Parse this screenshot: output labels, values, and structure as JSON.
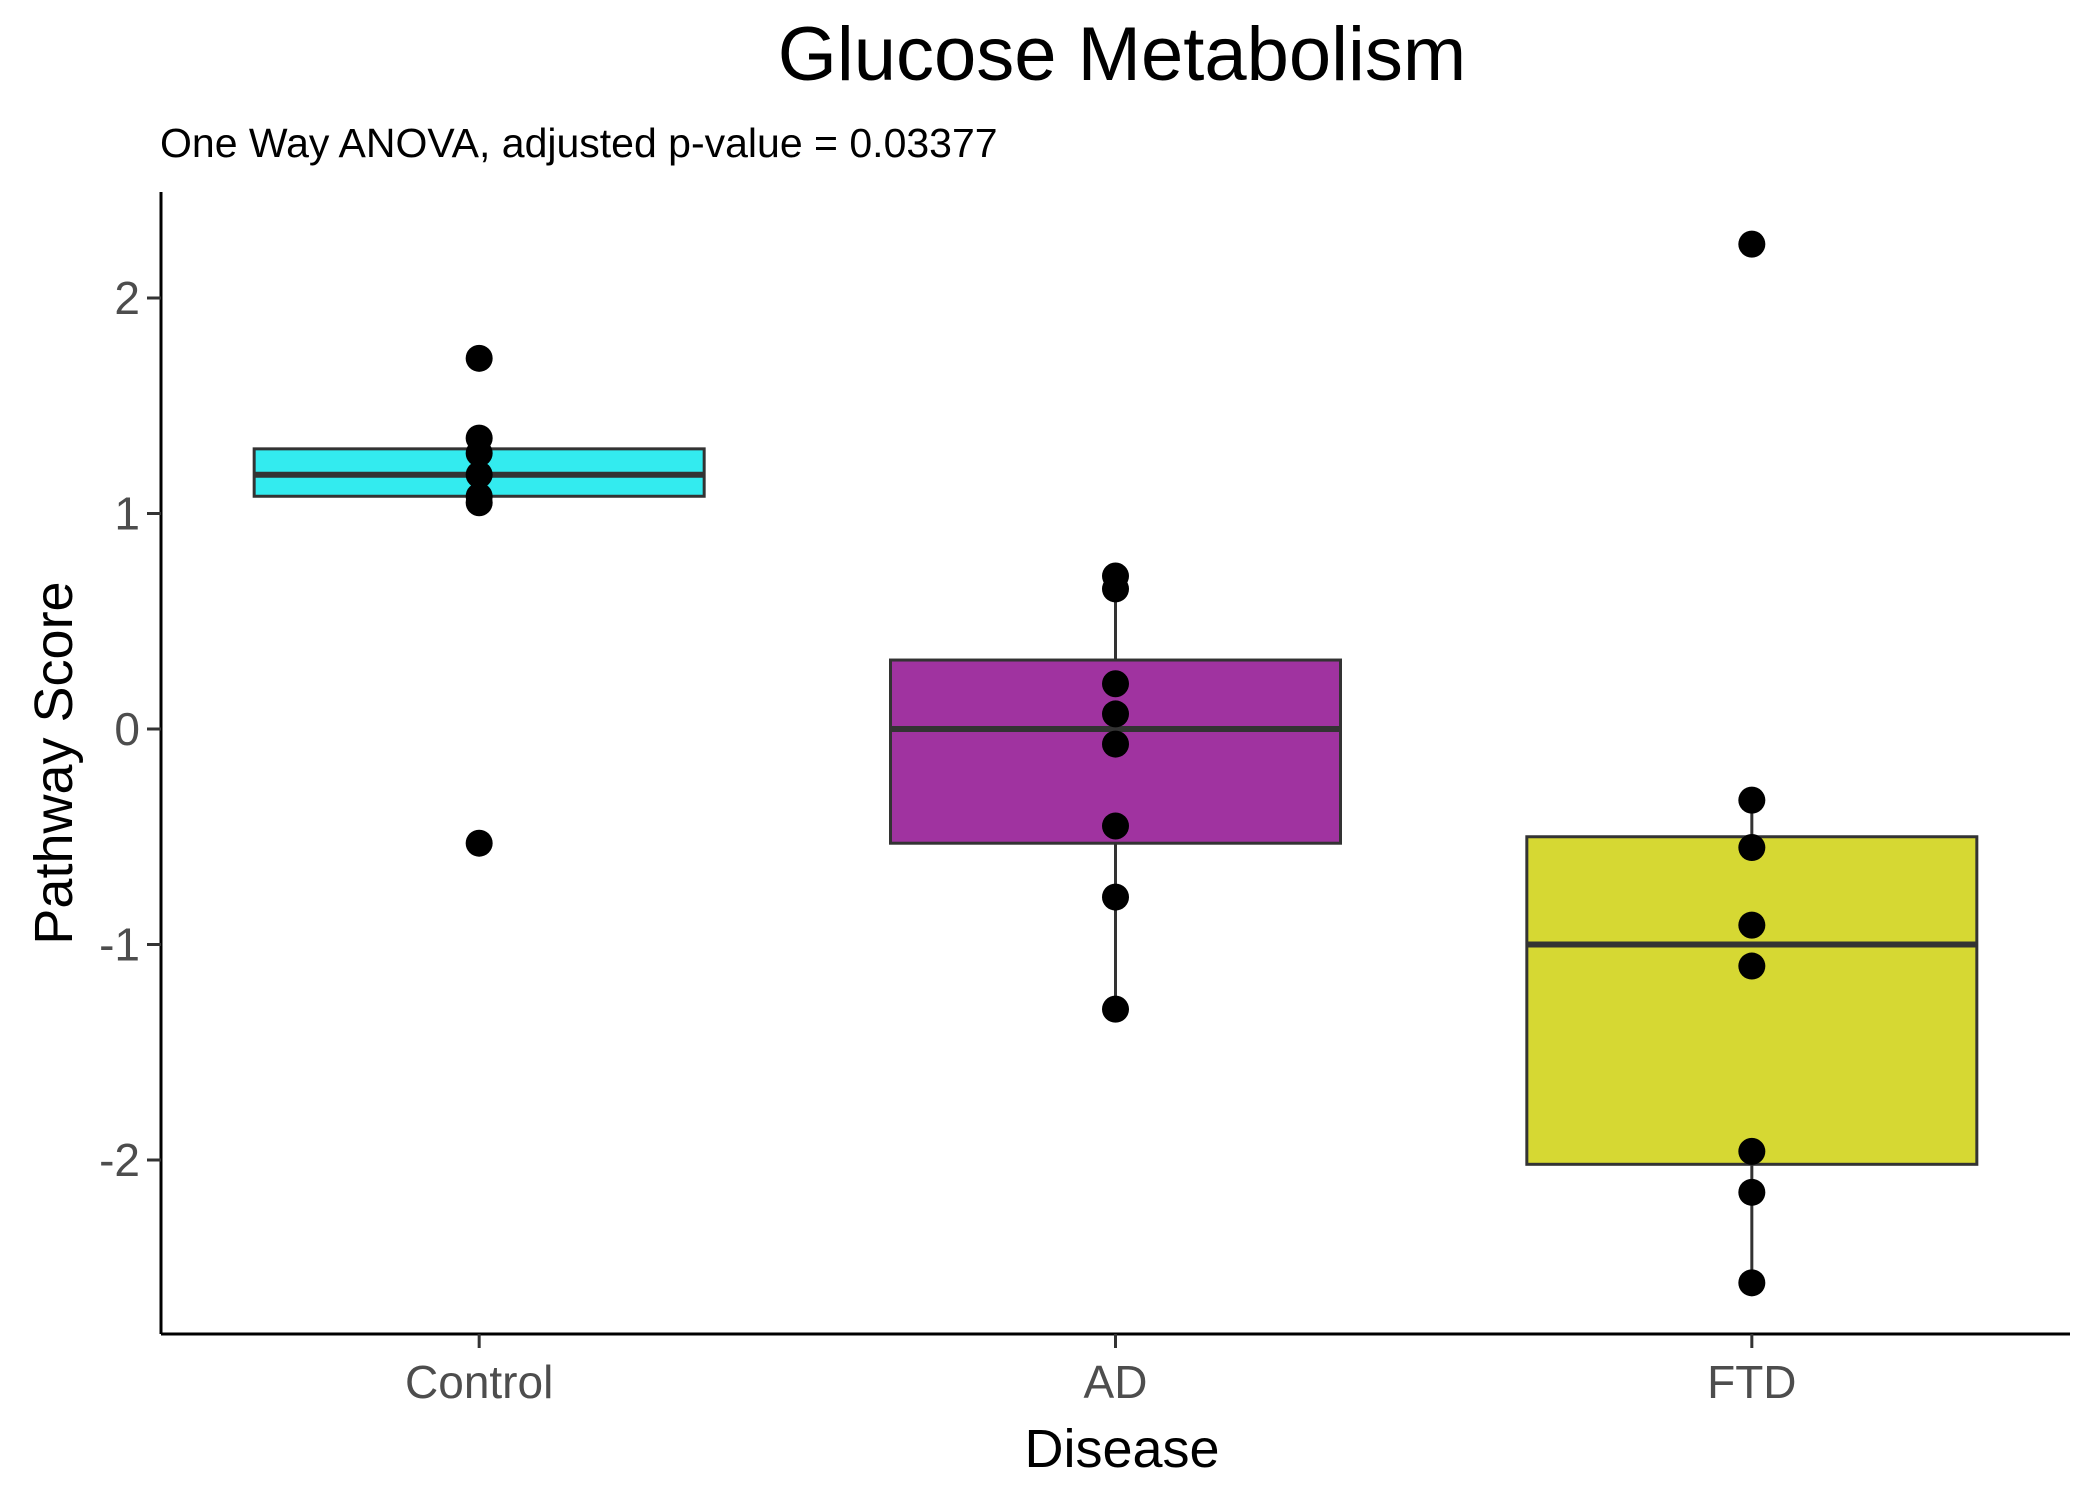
{
  "chart_data": {
    "type": "box",
    "title": "Glucose Metabolism",
    "subtitle": "One Way ANOVA, adjusted p-value = 0.03377",
    "xlabel": "Disease",
    "ylabel": "Pathway Score",
    "categories": [
      "Control",
      "AD",
      "FTD"
    ],
    "ylim": [
      -2.8,
      2.5
    ],
    "yticks": [
      2,
      1,
      0,
      -1,
      -2
    ],
    "ytick_labels": [
      "2",
      "1",
      "0",
      "-1",
      "-2"
    ],
    "grid": false,
    "groups": [
      {
        "name": "Control",
        "color": "#33ebef",
        "q1": 1.08,
        "median": 1.18,
        "q3": 1.3,
        "whisker_low": 1.08,
        "whisker_high": 1.3,
        "points": [
          1.72,
          1.35,
          1.28,
          1.18,
          1.08,
          1.05,
          -0.53
        ]
      },
      {
        "name": "AD",
        "color": "#a033a0",
        "q1": -0.53,
        "median": 0.0,
        "q3": 0.32,
        "whisker_low": -1.3,
        "whisker_high": 0.71,
        "points": [
          0.71,
          0.65,
          0.21,
          0.07,
          -0.07,
          -0.45,
          -0.78,
          -1.3
        ]
      },
      {
        "name": "FTD",
        "color": "#d6d833",
        "q1": -2.02,
        "median": -1.0,
        "q3": -0.5,
        "whisker_low": -2.57,
        "whisker_high": -0.33,
        "points": [
          2.25,
          -0.33,
          -0.55,
          -0.91,
          -1.1,
          -1.96,
          -2.15,
          -2.57
        ]
      }
    ]
  }
}
